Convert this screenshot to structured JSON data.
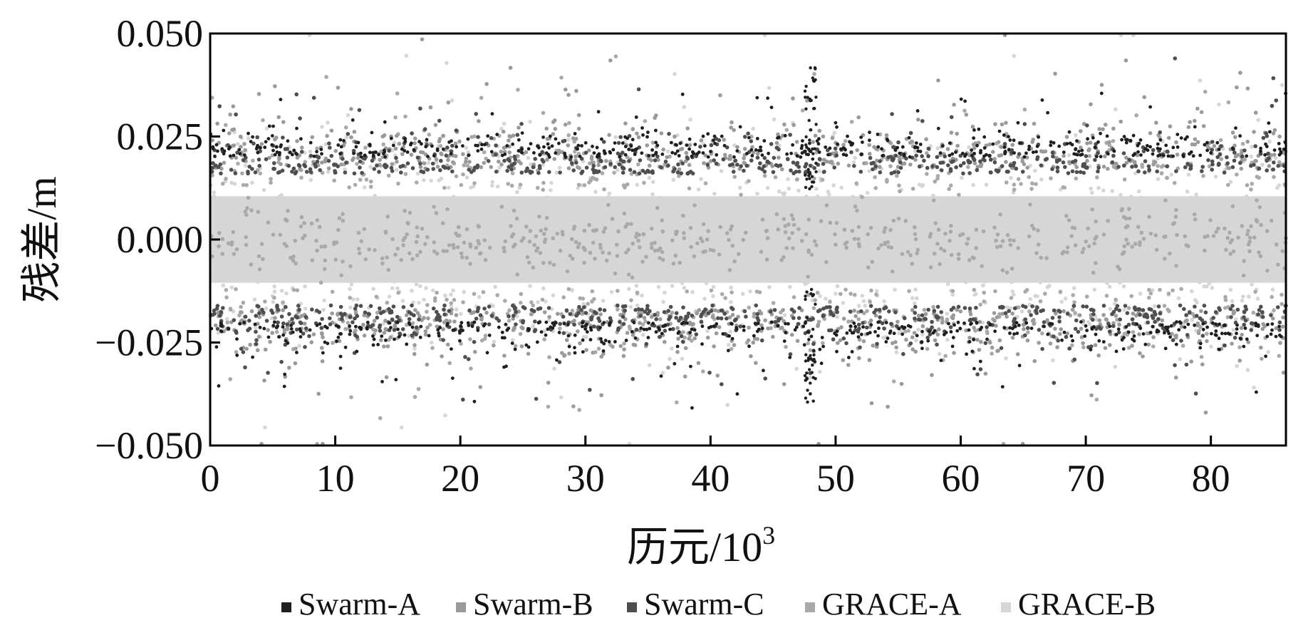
{
  "chart_data": {
    "type": "scatter",
    "title": "",
    "xlabel_main": "历元/10",
    "xlabel_exp": "3",
    "ylabel": "残差/m",
    "xlim": [
      0,
      86
    ],
    "ylim": [
      -0.05,
      0.05
    ],
    "x_ticks": [
      0,
      10,
      20,
      30,
      40,
      50,
      60,
      70,
      80
    ],
    "x_tick_labels": [
      "0",
      "10",
      "20",
      "30",
      "40",
      "50",
      "60",
      "70",
      "80"
    ],
    "y_ticks": [
      0.05,
      0.025,
      0.0,
      -0.025,
      -0.05
    ],
    "y_tick_labels": [
      "0.050",
      "0.025",
      "0.000",
      "−0.025",
      "−0.050"
    ],
    "grid": false,
    "legend_position": "bottom",
    "series": [
      {
        "name": "Swarm-A",
        "color": "#1e1e1e",
        "band": 0.02,
        "spread": 0.004
      },
      {
        "name": "Swarm-B",
        "color": "#9a9a9a",
        "band": 0.017,
        "spread": 0.008
      },
      {
        "name": "Swarm-C",
        "color": "#4e4e4e",
        "band": 0.016,
        "spread": 0.005
      },
      {
        "name": "GRACE-A",
        "color": "#a9a9a9",
        "band": 0.012,
        "spread": 0.01
      },
      {
        "name": "GRACE-B",
        "color": "#d6d6d6",
        "band": 0.009,
        "spread": 0.012
      }
    ]
  }
}
